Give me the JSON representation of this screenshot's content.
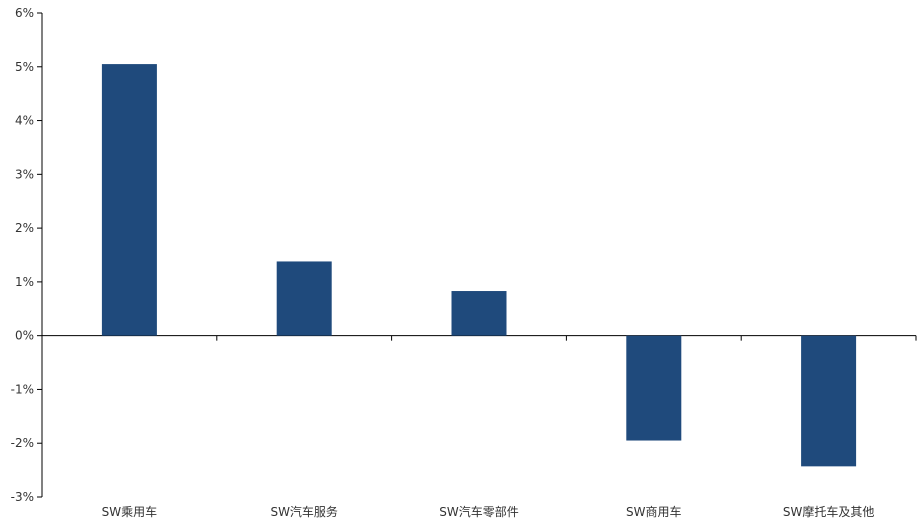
{
  "chart_data": {
    "type": "bar",
    "categories": [
      "SW乘用车",
      "SW汽车服务",
      "SW汽车零部件",
      "SW商用车",
      "SW摩托车及其他"
    ],
    "series": [
      {
        "values": [
          5.05,
          1.38,
          0.83,
          -1.95,
          -2.43
        ]
      }
    ],
    "ylim": [
      -3,
      6
    ],
    "yticks": [
      "-3%",
      "-2%",
      "-1%",
      "0%",
      "1%",
      "2%",
      "3%",
      "4%",
      "5%",
      "6%"
    ],
    "ytick_values": [
      -3,
      -2,
      -1,
      0,
      1,
      2,
      3,
      4,
      5,
      6
    ],
    "grid": false,
    "legend": "none",
    "bar_color": "#1f4a7c"
  }
}
